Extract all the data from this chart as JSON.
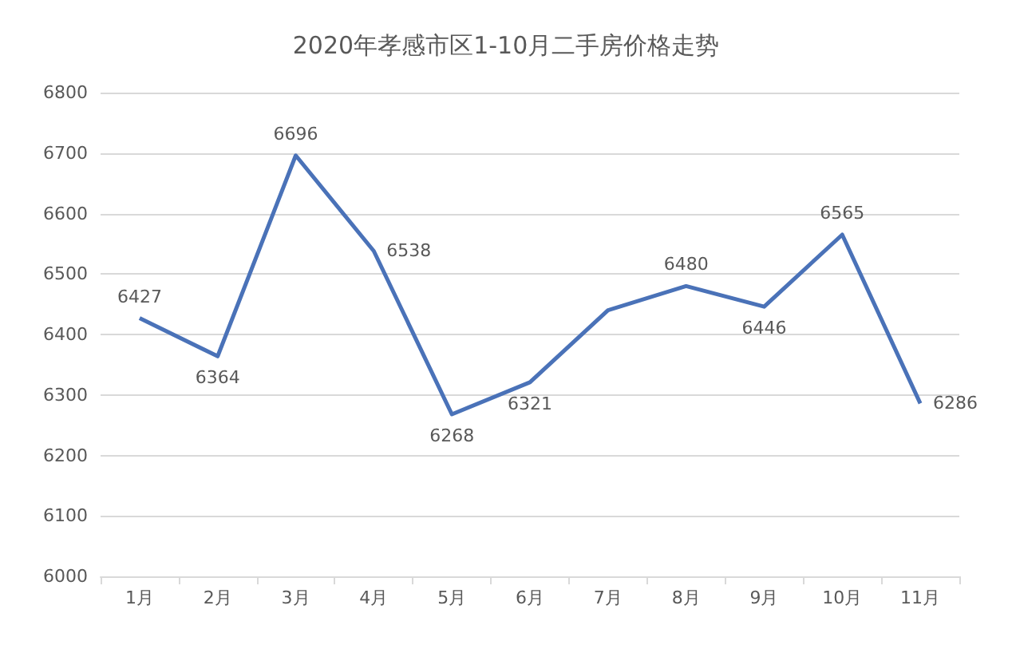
{
  "chart_data": {
    "type": "line",
    "title": "2020年孝感市区1-10月二手房价格走势",
    "categories": [
      "1月",
      "2月",
      "3月",
      "4月",
      "5月",
      "6月",
      "7月",
      "8月",
      "9月",
      "10月",
      "11月"
    ],
    "series": [
      {
        "color": "#4a72b8",
        "values": [
          6427,
          6364,
          6696,
          6538,
          6268,
          6321,
          6440,
          6480,
          6446,
          6565,
          6286
        ],
        "value_labels": [
          "6427",
          "6364",
          "6696",
          "6538",
          "6268",
          "6321",
          null,
          "6480",
          "6446",
          "6565",
          "6286"
        ]
      }
    ],
    "ylim": [
      6000,
      6800
    ],
    "yticks": [
      6000,
      6100,
      6200,
      6300,
      6400,
      6500,
      6600,
      6700,
      6800
    ],
    "grid": "y",
    "marker": "none",
    "line_style": "solid"
  }
}
